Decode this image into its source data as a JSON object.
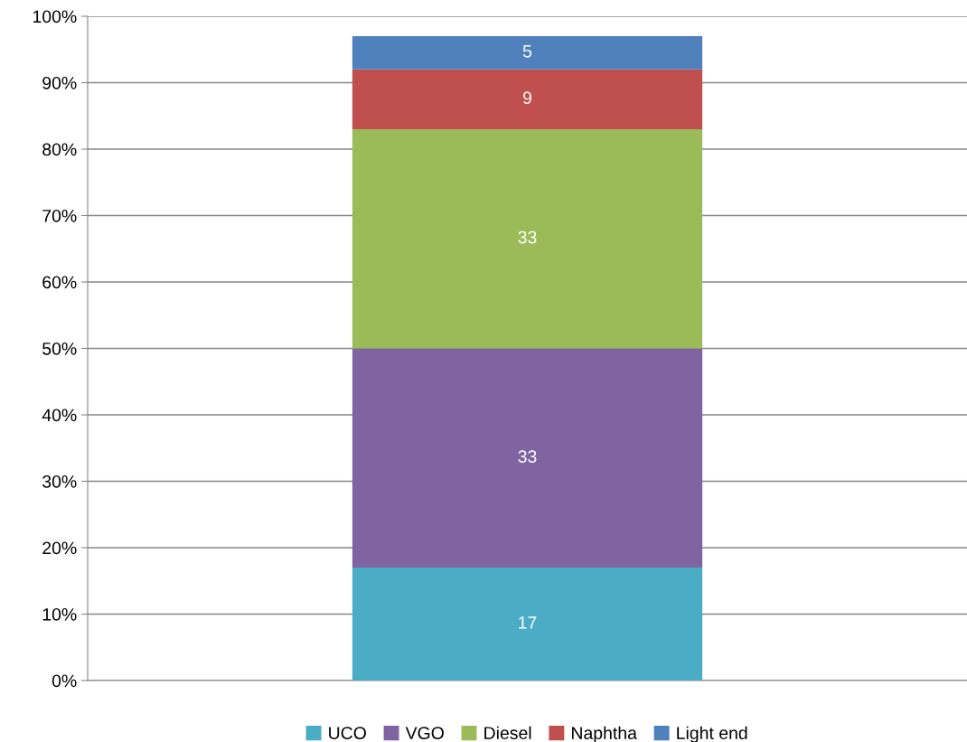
{
  "chart_data": {
    "type": "bar",
    "stacked": true,
    "categories": [
      null
    ],
    "series": [
      {
        "name": "UCO",
        "color": "#4bacc6",
        "values": [
          17
        ]
      },
      {
        "name": "VGO",
        "color": "#8064a2",
        "values": [
          33
        ]
      },
      {
        "name": "Diesel",
        "color": "#9bbb59",
        "values": [
          33
        ]
      },
      {
        "name": "Naphtha",
        "color": "#c0504d",
        "values": [
          9
        ]
      },
      {
        "name": "Light end",
        "color": "#4f81bd",
        "values": [
          5
        ]
      }
    ],
    "ylim": [
      0,
      100
    ],
    "yticks": [
      {
        "value": 0,
        "label": "0%"
      },
      {
        "value": 10,
        "label": "10%"
      },
      {
        "value": 20,
        "label": "20%"
      },
      {
        "value": 30,
        "label": "30%"
      },
      {
        "value": 40,
        "label": "40%"
      },
      {
        "value": 50,
        "label": "50%"
      },
      {
        "value": 60,
        "label": "60%"
      },
      {
        "value": 70,
        "label": "70%"
      },
      {
        "value": 80,
        "label": "80%"
      },
      {
        "value": 90,
        "label": "90%"
      },
      {
        "value": 100,
        "label": "100%"
      }
    ],
    "grid": "y",
    "legend": "bottom",
    "data_labels": true
  }
}
